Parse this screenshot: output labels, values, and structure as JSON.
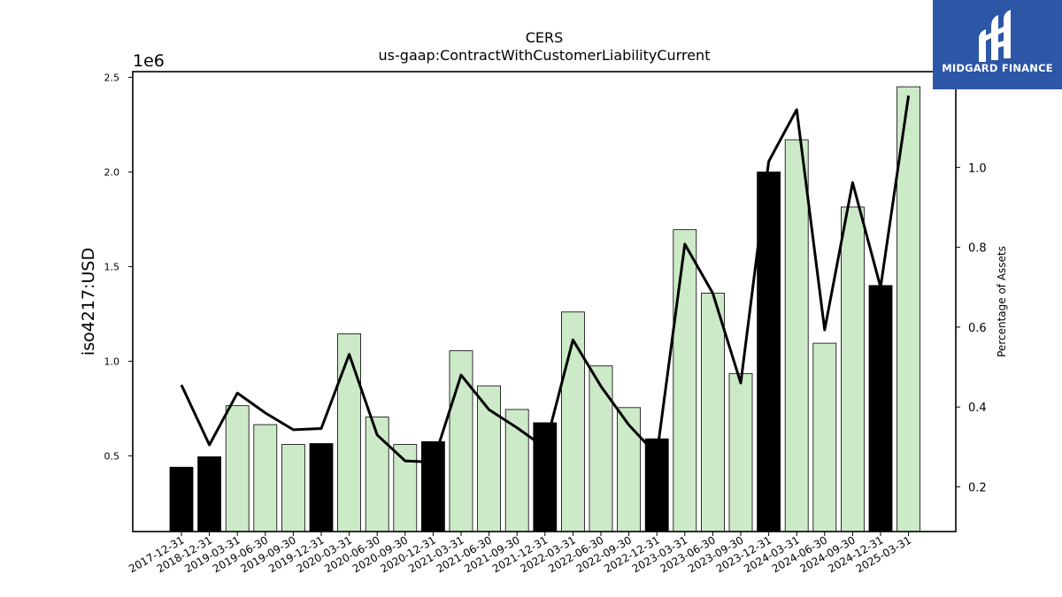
{
  "logo": {
    "text": "MIDGARD FINANCE",
    "background": "#2c56a6"
  },
  "chart_data": {
    "type": "bar",
    "title": "CERS",
    "subtitle": "us-gaap:ContractWithCustomerLiabilityCurrent",
    "ylabel": "iso4217:USD",
    "y_offset_text": "1e6",
    "y2label": "Percentage of Assets",
    "ylim": [
      100000,
      2530000
    ],
    "y_ticks": [
      0.5,
      1.0,
      1.5,
      2.0,
      2.5
    ],
    "y_tick_labels": [
      "0.5",
      "1.0",
      "1.5",
      "2.0",
      "2.5"
    ],
    "y2lim": [
      0.088,
      1.24
    ],
    "y2_ticks": [
      0.2,
      0.4,
      0.6,
      0.8,
      1.0
    ],
    "y2_tick_labels": [
      "0.2",
      "0.4",
      "0.6",
      "0.8",
      "1.0"
    ],
    "categories": [
      "2017-12-31",
      "2018-12-31",
      "2019-03-31",
      "2019-06-30",
      "2019-09-30",
      "2019-12-31",
      "2020-03-31",
      "2020-06-30",
      "2020-09-30",
      "2020-12-31",
      "2021-03-31",
      "2021-06-30",
      "2021-09-30",
      "2021-12-31",
      "2022-03-31",
      "2022-06-30",
      "2022-09-30",
      "2022-12-31",
      "2023-03-31",
      "2023-06-30",
      "2023-09-30",
      "2023-12-31",
      "2024-03-31",
      "2024-06-30",
      "2024-09-30",
      "2024-12-31",
      "2025-03-31"
    ],
    "values": [
      440000,
      495000,
      765000,
      665000,
      560000,
      565000,
      1145000,
      705000,
      560000,
      575000,
      1055000,
      870000,
      745000,
      675000,
      1260000,
      975000,
      755000,
      590000,
      1695000,
      1360000,
      935000,
      2000000,
      2170000,
      1095000,
      1815000,
      1400000,
      2450000
    ],
    "annual": [
      true,
      true,
      false,
      false,
      false,
      true,
      false,
      false,
      false,
      true,
      false,
      false,
      false,
      true,
      false,
      false,
      false,
      true,
      false,
      false,
      false,
      true,
      false,
      false,
      false,
      true,
      false
    ],
    "pct_of_assets": [
      0.455,
      0.305,
      0.435,
      0.385,
      0.343,
      0.346,
      0.532,
      0.33,
      0.265,
      0.262,
      0.48,
      0.393,
      0.348,
      0.298,
      0.568,
      0.452,
      0.355,
      0.28,
      0.808,
      0.685,
      0.46,
      1.015,
      1.145,
      0.593,
      0.962,
      0.7,
      1.18
    ],
    "colors": {
      "annual_bar": "#000000",
      "quarter_bar": "#cdeac8",
      "line": "#000000"
    },
    "grid": false
  }
}
